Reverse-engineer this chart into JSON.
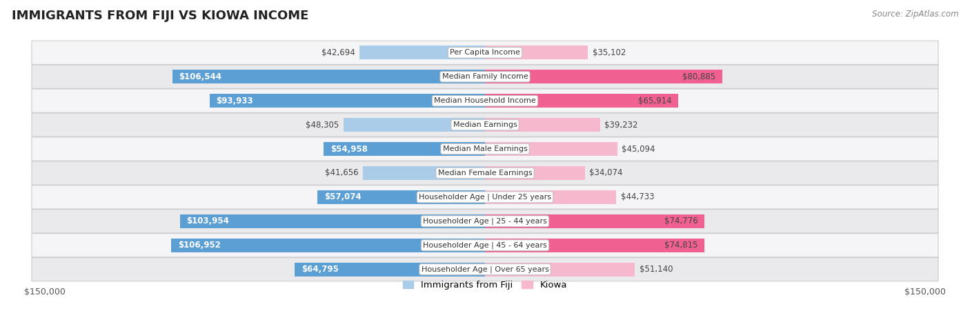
{
  "title": "IMMIGRANTS FROM FIJI VS KIOWA INCOME",
  "source": "Source: ZipAtlas.com",
  "categories": [
    "Per Capita Income",
    "Median Family Income",
    "Median Household Income",
    "Median Earnings",
    "Median Male Earnings",
    "Median Female Earnings",
    "Householder Age | Under 25 years",
    "Householder Age | 25 - 44 years",
    "Householder Age | 45 - 64 years",
    "Householder Age | Over 65 years"
  ],
  "fiji_values": [
    42694,
    106544,
    93933,
    48305,
    54958,
    41656,
    57074,
    103954,
    106952,
    64795
  ],
  "kiowa_values": [
    35102,
    80885,
    65914,
    39232,
    45094,
    34074,
    44733,
    74776,
    74815,
    51140
  ],
  "fiji_labels": [
    "$42,694",
    "$106,544",
    "$93,933",
    "$48,305",
    "$54,958",
    "$41,656",
    "$57,074",
    "$103,954",
    "$106,952",
    "$64,795"
  ],
  "kiowa_labels": [
    "$35,102",
    "$80,885",
    "$65,914",
    "$39,232",
    "$45,094",
    "$34,074",
    "$44,733",
    "$74,776",
    "$74,815",
    "$51,140"
  ],
  "max_value": 150000,
  "fiji_color_light": "#aacce8",
  "fiji_color_dark": "#5b9fd4",
  "kiowa_color_light": "#f5b8cc",
  "kiowa_color_dark": "#f06090",
  "fiji_threshold": 52000,
  "kiowa_threshold": 52000,
  "background_color": "#ffffff",
  "row_bg_odd": "#f5f5f7",
  "row_bg_even": "#eaeaed",
  "bar_height": 0.58,
  "legend_fiji": "Immigrants from Fiji",
  "legend_kiowa": "Kiowa",
  "label_fontsize": 8.5,
  "category_fontsize": 8.0
}
